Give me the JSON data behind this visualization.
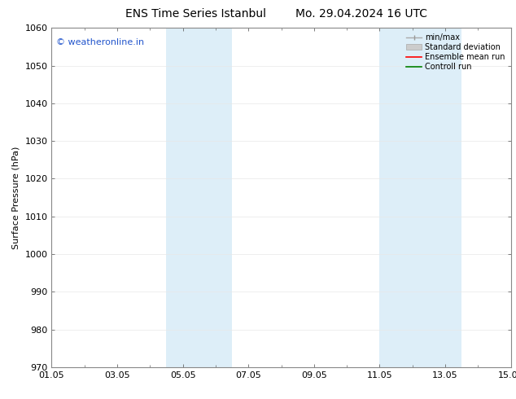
{
  "title_left": "ENS Time Series Istanbul",
  "title_right": "Mo. 29.04.2024 16 UTC",
  "ylabel": "Surface Pressure (hPa)",
  "ylim": [
    970,
    1060
  ],
  "yticks": [
    970,
    980,
    990,
    1000,
    1010,
    1020,
    1030,
    1040,
    1050,
    1060
  ],
  "xlim": [
    0,
    14
  ],
  "xtick_labels": [
    "01.05",
    "03.05",
    "05.05",
    "07.05",
    "09.05",
    "11.05",
    "13.05",
    "15.05"
  ],
  "xtick_positions": [
    0,
    2,
    4,
    6,
    8,
    10,
    12,
    14
  ],
  "shaded_regions": [
    {
      "start": 3.5,
      "end": 5.5
    },
    {
      "start": 10.0,
      "end": 12.5
    }
  ],
  "shade_color": "#ddeef8",
  "watermark_text": "© weatheronline.in",
  "watermark_color": "#2255cc",
  "bg_color": "#ffffff",
  "grid_color": "#cccccc",
  "font_size": 8,
  "title_fontsize": 10
}
